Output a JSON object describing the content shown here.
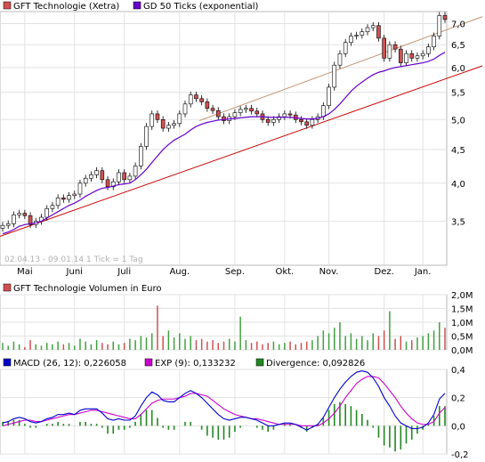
{
  "chart_data": [
    {
      "type": "candlestick",
      "legend": [
        {
          "label": "GFT Technologie (Xetra)",
          "color": "#d05050"
        },
        {
          "label": "GD 50 Ticks (exponential)",
          "color": "#6600cc"
        }
      ],
      "watermark": "02.04.13 - 09.01.14   1 Tick = 1 Tag",
      "x_ticks": [
        "Mai",
        "Juni",
        "Juli",
        "Aug.",
        "Sep.",
        "Okt.",
        "Nov.",
        "Dez.",
        "Jan."
      ],
      "y_ticks": [
        "3,5",
        "4,0",
        "4,5",
        "5,0",
        "5,5",
        "6,0",
        "6,5",
        "7,0"
      ],
      "ylim": [
        3.0,
        7.3
      ],
      "y_scale": "log",
      "close": [
        3.45,
        3.47,
        3.58,
        3.6,
        3.57,
        3.46,
        3.5,
        3.55,
        3.66,
        3.7,
        3.8,
        3.78,
        3.83,
        3.85,
        4.0,
        4.07,
        4.12,
        4.18,
        4.05,
        3.95,
        4.02,
        4.15,
        4.05,
        4.1,
        4.25,
        4.55,
        4.88,
        5.1,
        5.0,
        4.85,
        4.9,
        4.93,
        5.1,
        5.28,
        5.45,
        5.38,
        5.32,
        5.2,
        5.16,
        5.05,
        4.98,
        5.05,
        5.12,
        5.18,
        5.2,
        5.15,
        5.1,
        5.0,
        4.95,
        5.0,
        5.05,
        5.1,
        5.08,
        5.0,
        4.96,
        4.9,
        5.0,
        5.05,
        5.25,
        5.6,
        6.05,
        6.3,
        6.55,
        6.7,
        6.72,
        6.8,
        6.9,
        6.95,
        6.65,
        6.2,
        6.5,
        6.4,
        6.1,
        6.3,
        6.2,
        6.25,
        6.3,
        6.45,
        6.7,
        7.2,
        7.1
      ],
      "ema50": [
        3.35,
        3.37,
        3.4,
        3.44,
        3.46,
        3.47,
        3.48,
        3.5,
        3.54,
        3.58,
        3.62,
        3.66,
        3.7,
        3.73,
        3.77,
        3.82,
        3.86,
        3.9,
        3.93,
        3.94,
        3.96,
        3.98,
        3.99,
        4.0,
        4.05,
        4.12,
        4.2,
        4.3,
        4.4,
        4.5,
        4.58,
        4.65,
        4.7,
        4.75,
        4.82,
        4.88,
        4.92,
        4.95,
        4.97,
        4.99,
        5.0,
        5.01,
        5.02,
        5.03,
        5.04,
        5.05,
        5.05,
        5.05,
        5.04,
        5.04,
        5.04,
        5.04,
        5.04,
        5.03,
        5.02,
        5.01,
        5.01,
        5.02,
        5.05,
        5.1,
        5.18,
        5.28,
        5.4,
        5.52,
        5.62,
        5.7,
        5.78,
        5.85,
        5.9,
        5.93,
        5.97,
        6.0,
        6.02,
        6.04,
        6.06,
        6.08,
        6.1,
        6.13,
        6.18,
        6.26,
        6.33
      ],
      "trend_lines": [
        {
          "color": "#cc0000",
          "from": [
            0,
            3.32
          ],
          "to": [
            90,
            5.85
          ]
        },
        {
          "color": "#c09070",
          "from": [
            40,
            4.98
          ],
          "to": [
            90,
            6.95
          ]
        }
      ]
    },
    {
      "type": "bar",
      "legend": [
        {
          "label": "GFT Technologie Volumen in Euro",
          "color": "#d05050"
        }
      ],
      "y_ticks": [
        "0,0M",
        "0,5M",
        "1,0M",
        "1,5M",
        "2,0M"
      ],
      "ylim": [
        0,
        2.0
      ],
      "values_million": [
        0.25,
        0.15,
        0.3,
        0.2,
        0.1,
        0.35,
        0.2,
        0.15,
        0.25,
        0.2,
        0.3,
        0.2,
        0.25,
        0.15,
        0.4,
        0.3,
        0.2,
        0.35,
        0.25,
        0.2,
        0.3,
        0.2,
        0.25,
        0.4,
        0.35,
        0.5,
        0.45,
        0.6,
        1.6,
        0.5,
        0.7,
        0.45,
        0.6,
        0.4,
        0.5,
        0.35,
        0.4,
        0.3,
        0.35,
        0.25,
        0.3,
        0.4,
        0.3,
        1.2,
        0.35,
        0.25,
        0.3,
        0.2,
        0.25,
        0.3,
        0.2,
        0.25,
        0.3,
        0.2,
        0.25,
        0.3,
        0.35,
        0.5,
        0.7,
        0.6,
        0.8,
        1.0,
        0.5,
        0.6,
        0.4,
        0.5,
        0.35,
        0.6,
        0.5,
        0.7,
        1.4,
        0.4,
        0.5,
        0.3,
        0.35,
        0.45,
        0.5,
        0.6,
        0.7,
        1.0,
        0.8
      ]
    },
    {
      "type": "line",
      "legend": [
        {
          "label": "MACD (26, 12): 0,226058",
          "color": "#0000cc"
        },
        {
          "label": "EXP (9): 0,133232",
          "color": "#cc00cc"
        },
        {
          "label": "Divergence: 0,092826",
          "color": "#228822"
        }
      ],
      "y_ticks": [
        "-0,2",
        "0,0",
        "0,2",
        "0,4"
      ],
      "ylim": [
        -0.2,
        0.4
      ],
      "macd": [
        0.02,
        0.03,
        0.05,
        0.06,
        0.05,
        0.03,
        0.02,
        0.03,
        0.05,
        0.06,
        0.08,
        0.08,
        0.09,
        0.08,
        0.11,
        0.12,
        0.12,
        0.12,
        0.09,
        0.05,
        0.04,
        0.05,
        0.04,
        0.04,
        0.07,
        0.14,
        0.2,
        0.24,
        0.22,
        0.18,
        0.17,
        0.17,
        0.2,
        0.23,
        0.25,
        0.23,
        0.2,
        0.16,
        0.12,
        0.08,
        0.05,
        0.04,
        0.05,
        0.06,
        0.06,
        0.05,
        0.04,
        0.02,
        0.0,
        0.0,
        0.01,
        0.02,
        0.02,
        0.01,
        -0.01,
        -0.03,
        -0.01,
        0.01,
        0.06,
        0.13,
        0.2,
        0.26,
        0.31,
        0.35,
        0.38,
        0.39,
        0.38,
        0.34,
        0.28,
        0.2,
        0.14,
        0.07,
        0.02,
        0.0,
        -0.02,
        -0.02,
        -0.01,
        0.02,
        0.08,
        0.19,
        0.23
      ],
      "exp9": [
        0.0,
        0.01,
        0.02,
        0.03,
        0.04,
        0.04,
        0.03,
        0.03,
        0.04,
        0.05,
        0.06,
        0.07,
        0.08,
        0.08,
        0.09,
        0.1,
        0.11,
        0.11,
        0.1,
        0.09,
        0.08,
        0.07,
        0.06,
        0.05,
        0.05,
        0.08,
        0.12,
        0.16,
        0.18,
        0.19,
        0.19,
        0.19,
        0.2,
        0.21,
        0.23,
        0.23,
        0.22,
        0.21,
        0.18,
        0.15,
        0.12,
        0.1,
        0.08,
        0.07,
        0.06,
        0.05,
        0.05,
        0.04,
        0.03,
        0.02,
        0.01,
        0.01,
        0.01,
        0.01,
        0.0,
        0.0,
        0.0,
        0.0,
        0.02,
        0.05,
        0.09,
        0.14,
        0.2,
        0.25,
        0.3,
        0.33,
        0.35,
        0.35,
        0.34,
        0.3,
        0.25,
        0.2,
        0.14,
        0.09,
        0.05,
        0.02,
        0.01,
        0.01,
        0.03,
        0.09,
        0.13
      ]
    }
  ]
}
